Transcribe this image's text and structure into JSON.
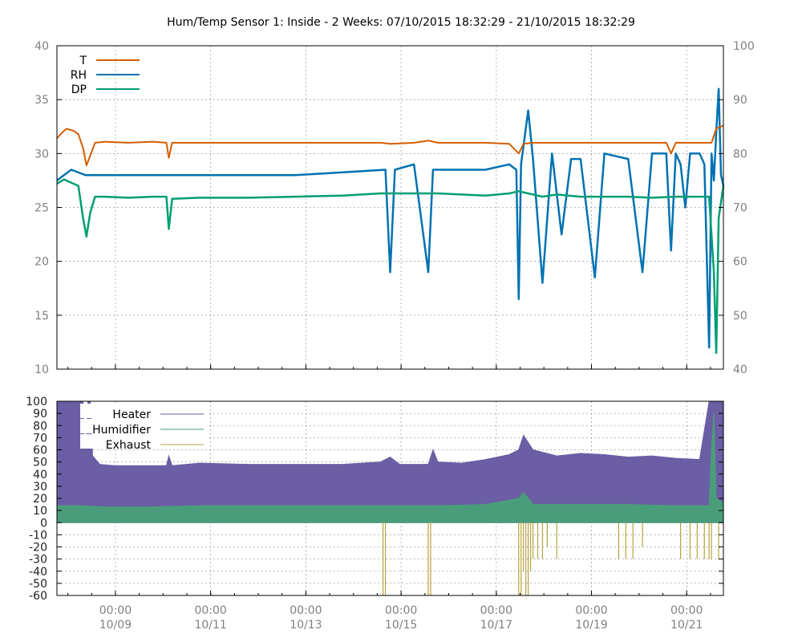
{
  "chart_data": [
    {
      "id": "top",
      "type": "line",
      "title": "Hum/Temp Sensor 1: Inside - 2 Weeks: 07/10/2015 18:32:29 - 21/10/2015 18:32:29",
      "y_ticks_left": [
        "10",
        "15",
        "20",
        "25",
        "30",
        "35",
        "40"
      ],
      "y_ticks_right": [
        "40",
        "50",
        "60",
        "70",
        "80",
        "90",
        "100"
      ],
      "ylim_left": [
        10,
        40
      ],
      "ylim_right": [
        40,
        100
      ],
      "xlim_days": [
        0,
        14
      ],
      "grid": true,
      "legend_position": "top-left",
      "series": [
        {
          "name": "T",
          "axis": "left",
          "color": "#d55e00",
          "points": [
            [
              0,
              31.4
            ],
            [
              0.1,
              31.9
            ],
            [
              0.2,
              32.3
            ],
            [
              0.35,
              32.1
            ],
            [
              0.45,
              31.8
            ],
            [
              0.55,
              30.5
            ],
            [
              0.62,
              28.9
            ],
            [
              0.7,
              29.8
            ],
            [
              0.8,
              31.0
            ],
            [
              1.0,
              31.1
            ],
            [
              1.5,
              31.0
            ],
            [
              2.0,
              31.1
            ],
            [
              2.3,
              31.0
            ],
            [
              2.35,
              29.6
            ],
            [
              2.42,
              31.0
            ],
            [
              3.0,
              31.0
            ],
            [
              4,
              31.0
            ],
            [
              5,
              31.0
            ],
            [
              6,
              31.0
            ],
            [
              6.8,
              31.0
            ],
            [
              7.0,
              30.9
            ],
            [
              7.5,
              31.0
            ],
            [
              7.8,
              31.2
            ],
            [
              8.0,
              31.0
            ],
            [
              9,
              31.0
            ],
            [
              9.5,
              30.9
            ],
            [
              9.7,
              30.0
            ],
            [
              9.8,
              30.9
            ],
            [
              10,
              31.0
            ],
            [
              11,
              31.0
            ],
            [
              12,
              31.0
            ],
            [
              12.8,
              31.0
            ],
            [
              12.9,
              30.0
            ],
            [
              13.0,
              31.0
            ],
            [
              13.5,
              31.0
            ],
            [
              13.75,
              31.0
            ],
            [
              13.85,
              32.3
            ],
            [
              14.0,
              32.6
            ]
          ]
        },
        {
          "name": "RH",
          "axis": "right",
          "color": "#0072b2",
          "points": [
            [
              0,
              75
            ],
            [
              0.3,
              77
            ],
            [
              0.6,
              76
            ],
            [
              1,
              76
            ],
            [
              2,
              76
            ],
            [
              3,
              76
            ],
            [
              4,
              76
            ],
            [
              5,
              76
            ],
            [
              6,
              76.5
            ],
            [
              6.9,
              77
            ],
            [
              7,
              58
            ],
            [
              7.1,
              77
            ],
            [
              7.5,
              78
            ],
            [
              7.8,
              58
            ],
            [
              7.9,
              77
            ],
            [
              8,
              77
            ],
            [
              9,
              77
            ],
            [
              9.5,
              78
            ],
            [
              9.65,
              77
            ],
            [
              9.7,
              53
            ],
            [
              9.75,
              78
            ],
            [
              9.9,
              88
            ],
            [
              10,
              79
            ],
            [
              10.2,
              56
            ],
            [
              10.4,
              80
            ],
            [
              10.6,
              65
            ],
            [
              10.8,
              79
            ],
            [
              11,
              79
            ],
            [
              11.3,
              57
            ],
            [
              11.5,
              80
            ],
            [
              12,
              79
            ],
            [
              12.3,
              58
            ],
            [
              12.5,
              80
            ],
            [
              12.8,
              80
            ],
            [
              12.9,
              62
            ],
            [
              13.0,
              80
            ],
            [
              13.1,
              78
            ],
            [
              13.2,
              70
            ],
            [
              13.3,
              80
            ],
            [
              13.5,
              80
            ],
            [
              13.6,
              78
            ],
            [
              13.7,
              44
            ],
            [
              13.75,
              80
            ],
            [
              13.8,
              75
            ],
            [
              13.85,
              84
            ],
            [
              13.9,
              92
            ],
            [
              13.95,
              76
            ],
            [
              14,
              74
            ]
          ]
        },
        {
          "name": "DP",
          "axis": "left",
          "color": "#009e73",
          "points": [
            [
              0,
              27.2
            ],
            [
              0.15,
              27.6
            ],
            [
              0.3,
              27.3
            ],
            [
              0.45,
              27.0
            ],
            [
              0.55,
              24.0
            ],
            [
              0.62,
              22.3
            ],
            [
              0.7,
              24.5
            ],
            [
              0.8,
              26.0
            ],
            [
              1.0,
              26.0
            ],
            [
              1.5,
              25.9
            ],
            [
              2.0,
              26.0
            ],
            [
              2.3,
              26.0
            ],
            [
              2.35,
              23.0
            ],
            [
              2.42,
              25.8
            ],
            [
              3,
              25.9
            ],
            [
              4,
              25.9
            ],
            [
              5,
              26.0
            ],
            [
              6,
              26.1
            ],
            [
              6.8,
              26.3
            ],
            [
              7,
              26.3
            ],
            [
              8,
              26.3
            ],
            [
              9,
              26.1
            ],
            [
              9.5,
              26.3
            ],
            [
              9.7,
              26.5
            ],
            [
              10,
              26.2
            ],
            [
              10.2,
              26.0
            ],
            [
              10.5,
              26.2
            ],
            [
              11,
              26.0
            ],
            [
              12,
              26.0
            ],
            [
              12.5,
              25.9
            ],
            [
              13,
              26.0
            ],
            [
              13.5,
              26.0
            ],
            [
              13.7,
              26.0
            ],
            [
              13.8,
              19.0
            ],
            [
              13.85,
              11.5
            ],
            [
              13.9,
              24.0
            ],
            [
              14,
              27.0
            ]
          ]
        }
      ]
    },
    {
      "id": "bottom",
      "type": "area",
      "y_ticks": [
        "-60",
        "-50",
        "-40",
        "-30",
        "-20",
        "-10",
        "0",
        "10",
        "20",
        "30",
        "40",
        "50",
        "60",
        "70",
        "80",
        "90",
        "100"
      ],
      "ylim": [
        -60,
        100
      ],
      "x_ticks": [
        {
          "day": 1.229,
          "time": "00:00",
          "date": "10/09"
        },
        {
          "day": 3.229,
          "time": "00:00",
          "date": "10/11"
        },
        {
          "day": 5.229,
          "time": "00:00",
          "date": "10/13"
        },
        {
          "day": 7.229,
          "time": "00:00",
          "date": "10/15"
        },
        {
          "day": 9.229,
          "time": "00:00",
          "date": "10/17"
        },
        {
          "day": 11.229,
          "time": "00:00",
          "date": "10/19"
        },
        {
          "day": 13.229,
          "time": "00:00",
          "date": "10/21"
        }
      ],
      "xlim_days": [
        0,
        14
      ],
      "grid": true,
      "legend_position": "top-left",
      "series": [
        {
          "name": "Heater",
          "color": "#6b5ea4",
          "points": [
            [
              0,
              100
            ],
            [
              0.55,
              100
            ],
            [
              0.57,
              70
            ],
            [
              0.6,
              58
            ],
            [
              0.65,
              100
            ],
            [
              0.7,
              100
            ],
            [
              0.75,
              55
            ],
            [
              0.9,
              48
            ],
            [
              1.2,
              47
            ],
            [
              1.5,
              47
            ],
            [
              2,
              47
            ],
            [
              2.3,
              47
            ],
            [
              2.35,
              55
            ],
            [
              2.42,
              47
            ],
            [
              3,
              49
            ],
            [
              4,
              48
            ],
            [
              5,
              48
            ],
            [
              6,
              48
            ],
            [
              6.8,
              50
            ],
            [
              7,
              54
            ],
            [
              7.2,
              48
            ],
            [
              7.8,
              48
            ],
            [
              7.9,
              60
            ],
            [
              8,
              50
            ],
            [
              8.5,
              49
            ],
            [
              9,
              52
            ],
            [
              9.5,
              56
            ],
            [
              9.7,
              60
            ],
            [
              9.8,
              72
            ],
            [
              10,
              60
            ],
            [
              10.5,
              55
            ],
            [
              11,
              57
            ],
            [
              11.5,
              56
            ],
            [
              12,
              54
            ],
            [
              12.5,
              55
            ],
            [
              13,
              53
            ],
            [
              13.5,
              52
            ],
            [
              13.7,
              100
            ],
            [
              14,
              100
            ]
          ]
        },
        {
          "name": "Humidifier",
          "color": "#4a9d7a",
          "points": [
            [
              0,
              14
            ],
            [
              0.5,
              14
            ],
            [
              1,
              13
            ],
            [
              2,
              13
            ],
            [
              3,
              14
            ],
            [
              4,
              14
            ],
            [
              5,
              14
            ],
            [
              6,
              14
            ],
            [
              7,
              14
            ],
            [
              8,
              14
            ],
            [
              9,
              15
            ],
            [
              9.7,
              20
            ],
            [
              9.8,
              25
            ],
            [
              10,
              15
            ],
            [
              11,
              15
            ],
            [
              12,
              15
            ],
            [
              13,
              14
            ],
            [
              13.7,
              14
            ],
            [
              13.75,
              60
            ],
            [
              13.8,
              90
            ],
            [
              13.85,
              20
            ],
            [
              14,
              16
            ]
          ]
        },
        {
          "name": "Exhaust",
          "color": "#b8a23e",
          "drops": [
            [
              6.85,
              -60
            ],
            [
              6.9,
              -60
            ],
            [
              7.8,
              -60
            ],
            [
              7.85,
              -60
            ],
            [
              9.7,
              -60
            ],
            [
              9.75,
              -60
            ],
            [
              9.8,
              -40
            ],
            [
              9.85,
              -60
            ],
            [
              9.9,
              -60
            ],
            [
              9.95,
              -40
            ],
            [
              10.0,
              -30
            ],
            [
              10.1,
              -30
            ],
            [
              10.2,
              -30
            ],
            [
              10.3,
              -20
            ],
            [
              10.5,
              -30
            ],
            [
              11.8,
              -30
            ],
            [
              11.95,
              -30
            ],
            [
              12.1,
              -30
            ],
            [
              12.3,
              -20
            ],
            [
              13.1,
              -30
            ],
            [
              13.3,
              -30
            ],
            [
              13.45,
              -30
            ],
            [
              13.6,
              -30
            ],
            [
              13.7,
              -30
            ],
            [
              13.75,
              -30
            ],
            [
              13.9,
              -30
            ]
          ]
        }
      ]
    }
  ]
}
